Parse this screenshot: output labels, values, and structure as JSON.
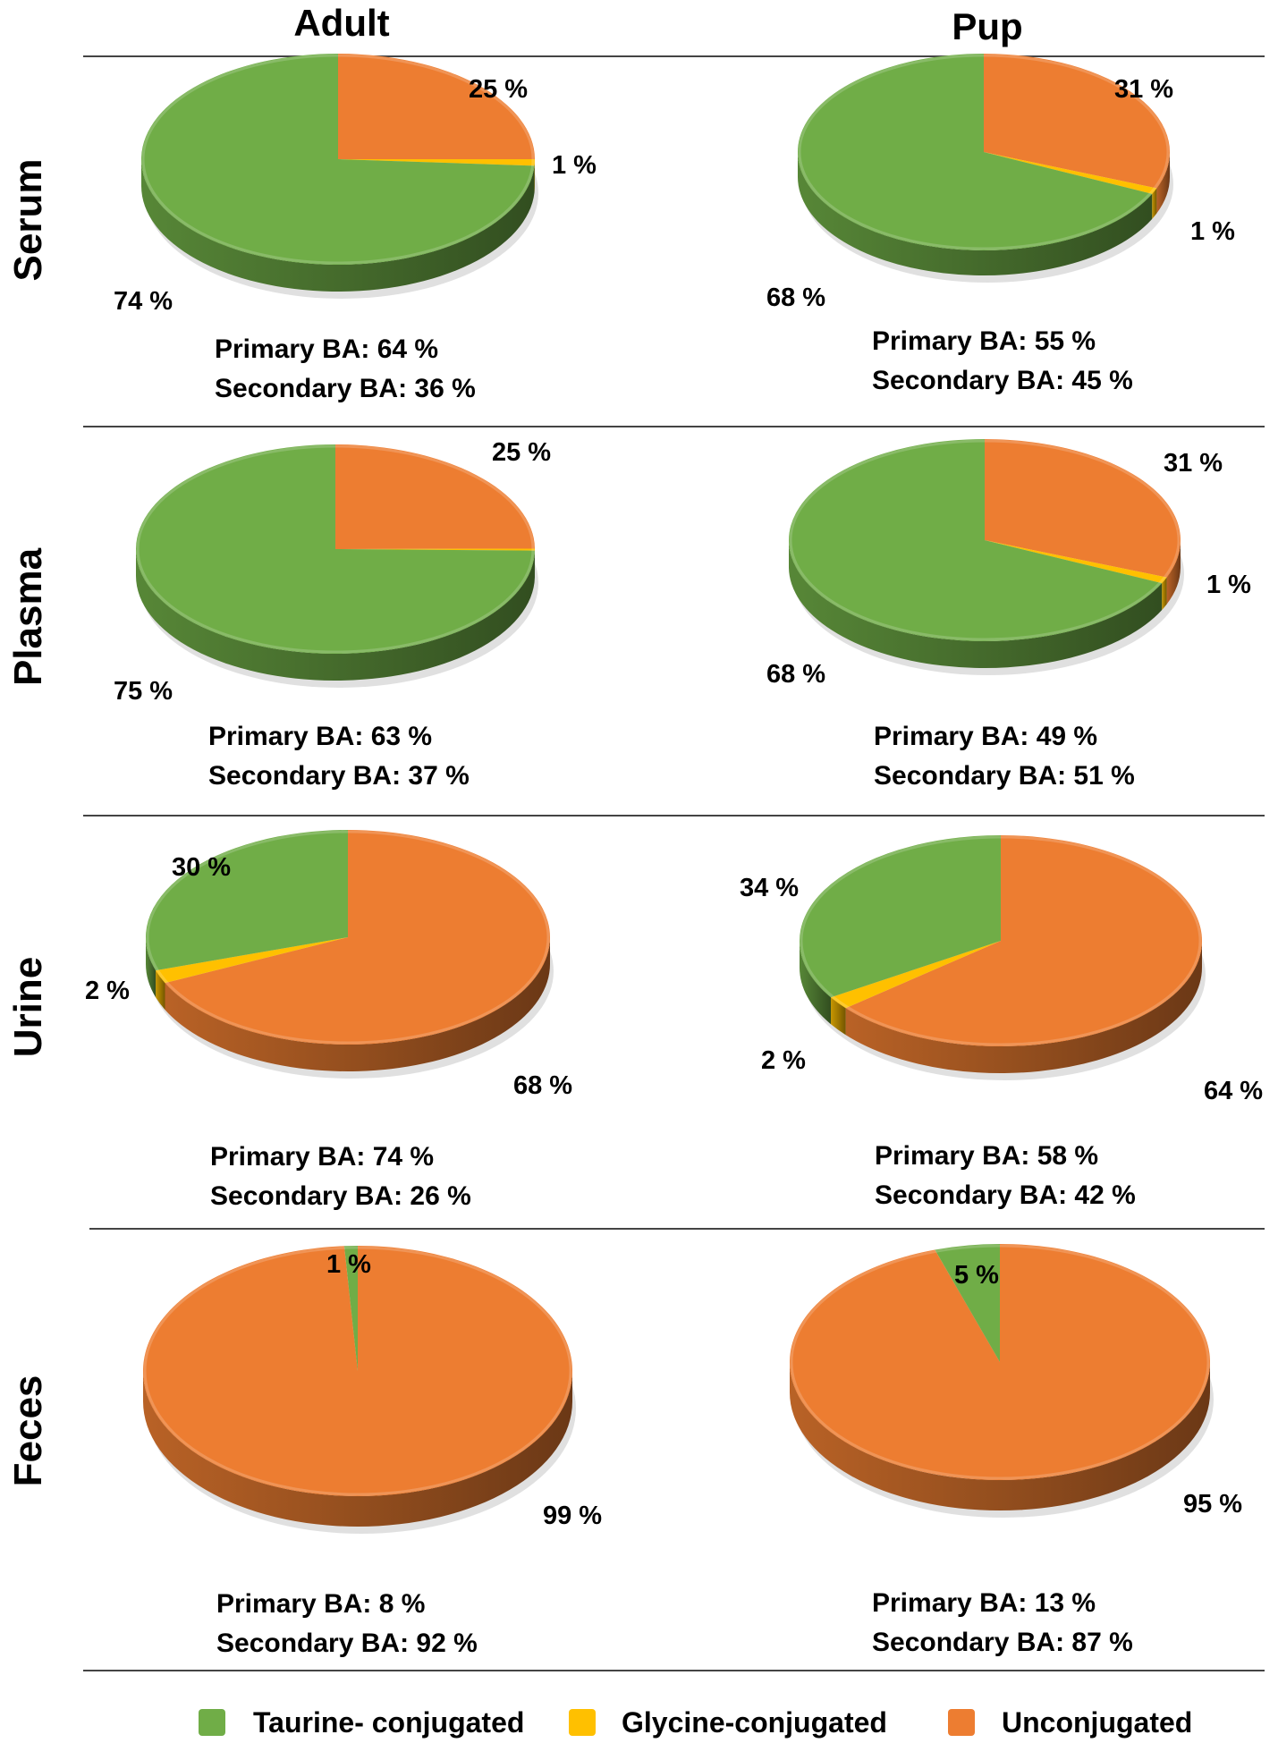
{
  "colors": {
    "taurine": "#70ad47",
    "glycine": "#ffc000",
    "unconjugated": "#ed7d31",
    "rule": "#444444"
  },
  "columns": [
    "Adult",
    "Pup"
  ],
  "rows": [
    "Serum",
    "Plasma",
    "Urine",
    "Feces"
  ],
  "legend": [
    {
      "label": "Taurine- conjugated",
      "color": "#70ad47"
    },
    {
      "label": "Glycine-conjugated",
      "color": "#ffc000"
    },
    {
      "label": "Unconjugated",
      "color": "#ed7d31"
    }
  ],
  "chart_data": [
    {
      "type": "pie",
      "row": "Serum",
      "column": "Adult",
      "slices": [
        {
          "name": "Unconjugated",
          "value": 25,
          "label": "25 %"
        },
        {
          "name": "Glycine-conjugated",
          "value": 1,
          "label": "1 %"
        },
        {
          "name": "Taurine- conjugated",
          "value": 74,
          "label": "74 %"
        }
      ],
      "primary": "Primary BA: 64 %",
      "secondary": "Secondary BA: 36 %"
    },
    {
      "type": "pie",
      "row": "Serum",
      "column": "Pup",
      "slices": [
        {
          "name": "Unconjugated",
          "value": 31,
          "label": "31 %"
        },
        {
          "name": "Glycine-conjugated",
          "value": 1,
          "label": "1 %"
        },
        {
          "name": "Taurine- conjugated",
          "value": 68,
          "label": "68 %"
        }
      ],
      "primary": "Primary BA: 55 %",
      "secondary": "Secondary BA: 45 %"
    },
    {
      "type": "pie",
      "row": "Plasma",
      "column": "Adult",
      "slices": [
        {
          "name": "Unconjugated",
          "value": 25,
          "label": "25 %"
        },
        {
          "name": "Glycine-conjugated",
          "value": 0.3,
          "label": ""
        },
        {
          "name": "Taurine- conjugated",
          "value": 75,
          "label": "75 %"
        }
      ],
      "primary": "Primary BA: 63 %",
      "secondary": "Secondary BA: 37 %"
    },
    {
      "type": "pie",
      "row": "Plasma",
      "column": "Pup",
      "slices": [
        {
          "name": "Unconjugated",
          "value": 31,
          "label": "31 %"
        },
        {
          "name": "Glycine-conjugated",
          "value": 1,
          "label": "1 %"
        },
        {
          "name": "Taurine- conjugated",
          "value": 68,
          "label": "68 %"
        }
      ],
      "primary": "Primary BA: 49 %",
      "secondary": "Secondary BA: 51 %"
    },
    {
      "type": "pie",
      "row": "Urine",
      "column": "Adult",
      "slices": [
        {
          "name": "Unconjugated",
          "value": 68,
          "label": "68 %"
        },
        {
          "name": "Glycine-conjugated",
          "value": 2,
          "label": "2 %"
        },
        {
          "name": "Taurine- conjugated",
          "value": 30,
          "label": "30 %"
        }
      ],
      "primary": "Primary BA: 74 %",
      "secondary": "Secondary BA: 26 %"
    },
    {
      "type": "pie",
      "row": "Urine",
      "column": "Pup",
      "slices": [
        {
          "name": "Unconjugated",
          "value": 64,
          "label": "64 %"
        },
        {
          "name": "Glycine-conjugated",
          "value": 2,
          "label": "2 %"
        },
        {
          "name": "Taurine- conjugated",
          "value": 34,
          "label": "34 %"
        }
      ],
      "primary": "Primary BA: 58 %",
      "secondary": "Secondary BA: 42 %"
    },
    {
      "type": "pie",
      "row": "Feces",
      "column": "Adult",
      "slices": [
        {
          "name": "Unconjugated",
          "value": 99,
          "label": "99 %"
        },
        {
          "name": "Taurine- conjugated",
          "value": 1,
          "label": "1 %"
        }
      ],
      "primary": "Primary BA: 8 %",
      "secondary": "Secondary BA: 92 %"
    },
    {
      "type": "pie",
      "row": "Feces",
      "column": "Pup",
      "slices": [
        {
          "name": "Unconjugated",
          "value": 95,
          "label": "95 %"
        },
        {
          "name": "Taurine- conjugated",
          "value": 5,
          "label": "5 %"
        }
      ],
      "primary": "Primary BA: 13 %",
      "secondary": "Secondary BA: 87 %"
    }
  ]
}
